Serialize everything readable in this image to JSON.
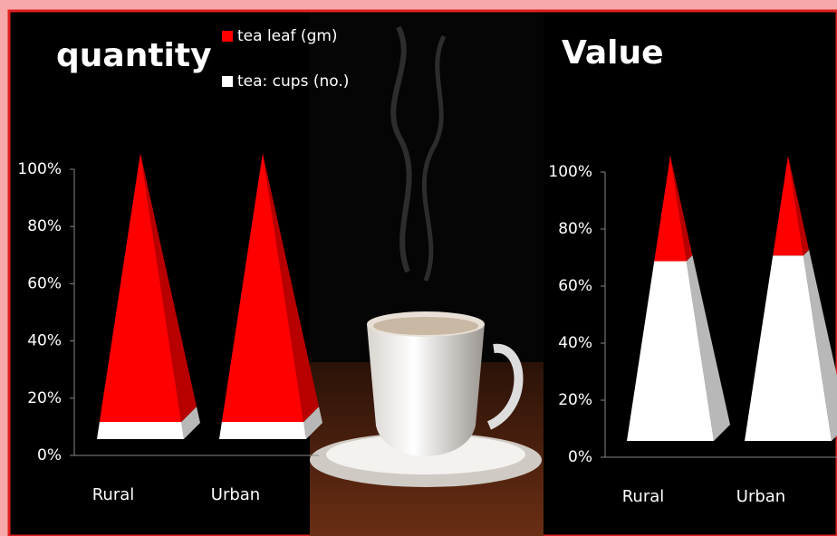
{
  "chart_data": [
    {
      "type": "pyramid",
      "title": "quantity",
      "categories": [
        "Rural",
        "Urban"
      ],
      "series": [
        {
          "name": "tea  leaf (gm)",
          "color": "#ff0000",
          "values": [
            94,
            94
          ]
        },
        {
          "name": "tea: cups (no.)",
          "color": "#ffffff",
          "values": [
            6,
            6
          ]
        }
      ],
      "ylim": [
        0,
        100
      ],
      "yticks": [
        {
          "value": 0,
          "label": "0%"
        },
        {
          "value": 20,
          "label": "20%"
        },
        {
          "value": 40,
          "label": "40%"
        },
        {
          "value": 60,
          "label": "60%"
        },
        {
          "value": 80,
          "label": "80%"
        },
        {
          "value": 100,
          "label": "100%"
        }
      ]
    },
    {
      "type": "pyramid",
      "title": "Value",
      "categories": [
        "Rural",
        "Urban"
      ],
      "series": [
        {
          "color": "#ff0000",
          "values": [
            37,
            35
          ]
        },
        {
          "color": "#ffffff",
          "values": [
            63,
            65
          ]
        }
      ],
      "ylim": [
        0,
        100
      ],
      "yticks": [
        {
          "value": 0,
          "label": "0%"
        },
        {
          "value": 20,
          "label": "20%"
        },
        {
          "value": 40,
          "label": "40%"
        },
        {
          "value": 60,
          "label": "60%"
        },
        {
          "value": 80,
          "label": "80%"
        },
        {
          "value": 100,
          "label": "100%"
        }
      ]
    }
  ]
}
